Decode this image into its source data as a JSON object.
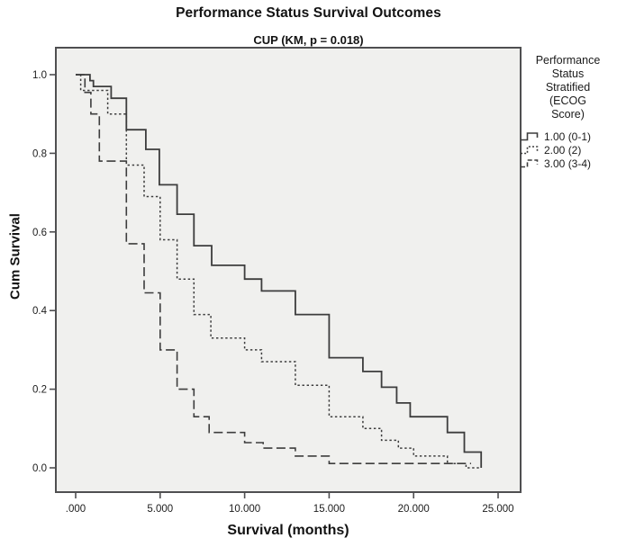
{
  "title": "Performance Status Survival Outcomes",
  "subtitle": "CUP (KM, p = 0.018)",
  "legend": {
    "title_lines": [
      "Performance",
      "Status",
      "Stratified",
      "(ECOG",
      "Score)"
    ],
    "entries": [
      {
        "label": "1.00 (0-1)",
        "style": "solid"
      },
      {
        "label": "2.00 (2)",
        "style": "dotted"
      },
      {
        "label": "3.00 (3-4)",
        "style": "dashed"
      }
    ]
  },
  "colors": {
    "curve": "#3d3d3d",
    "frame": "#4f4f51",
    "plot_bg": "#f0f0ee",
    "tick_text": "#1c1c1c"
  },
  "chart_data": {
    "type": "line",
    "subtype": "kaplan-meier-step",
    "title": "Performance Status Survival Outcomes",
    "subtitle": "CUP (KM, p = 0.018)",
    "p_value": 0.018,
    "xlabel": "Survival (months)",
    "ylabel": "Cum Survival",
    "xlim": [
      0,
      25
    ],
    "ylim": [
      0,
      1
    ],
    "grid": false,
    "legend_position": "right",
    "x_ticks": [
      {
        "value": 0,
        "label": ".000"
      },
      {
        "value": 5,
        "label": "5.000"
      },
      {
        "value": 10,
        "label": "10.000"
      },
      {
        "value": 15,
        "label": "15.000"
      },
      {
        "value": 20,
        "label": "20.000"
      },
      {
        "value": 25,
        "label": "25.000"
      }
    ],
    "y_ticks": [
      {
        "value": 0.0,
        "label": "0.0"
      },
      {
        "value": 0.2,
        "label": "0.2"
      },
      {
        "value": 0.4,
        "label": "0.4"
      },
      {
        "value": 0.6,
        "label": "0.6"
      },
      {
        "value": 0.8,
        "label": "0.8"
      },
      {
        "value": 1.0,
        "label": "1.0"
      }
    ],
    "series": [
      {
        "name": "1.00 (0-1)",
        "ecog": "0-1",
        "line": "solid",
        "end_time": 24.0,
        "points": [
          [
            0,
            1.0
          ],
          [
            0.85,
            0.985
          ],
          [
            1.05,
            0.97
          ],
          [
            2.1,
            0.94
          ],
          [
            3.0,
            0.86
          ],
          [
            4.15,
            0.81
          ],
          [
            4.95,
            0.72
          ],
          [
            6.0,
            0.645
          ],
          [
            7.0,
            0.565
          ],
          [
            8.05,
            0.515
          ],
          [
            10.0,
            0.48
          ],
          [
            11.0,
            0.45
          ],
          [
            13.0,
            0.39
          ],
          [
            15.0,
            0.28
          ],
          [
            17.0,
            0.245
          ],
          [
            18.1,
            0.205
          ],
          [
            19.0,
            0.165
          ],
          [
            19.8,
            0.13
          ],
          [
            22.0,
            0.09
          ],
          [
            23.0,
            0.04
          ],
          [
            24.0,
            0.0
          ]
        ]
      },
      {
        "name": "2.00 (2)",
        "ecog": "2",
        "line": "dotted",
        "end_time": 24.0,
        "points": [
          [
            0,
            1.0
          ],
          [
            0.3,
            0.96
          ],
          [
            1.9,
            0.9
          ],
          [
            3.0,
            0.77
          ],
          [
            4.05,
            0.69
          ],
          [
            5.0,
            0.58
          ],
          [
            6.0,
            0.48
          ],
          [
            7.0,
            0.39
          ],
          [
            8.0,
            0.33
          ],
          [
            10.0,
            0.3
          ],
          [
            11.0,
            0.27
          ],
          [
            13.0,
            0.21
          ],
          [
            15.0,
            0.13
          ],
          [
            17.0,
            0.1
          ],
          [
            18.1,
            0.07
          ],
          [
            19.1,
            0.05
          ],
          [
            20.0,
            0.03
          ],
          [
            22.0,
            0.011
          ],
          [
            23.1,
            0.0
          ]
        ]
      },
      {
        "name": "3.00 (3-4)",
        "ecog": "3-4",
        "line": "dashed",
        "end_time": 23.4,
        "points": [
          [
            0,
            1.0
          ],
          [
            0.55,
            0.955
          ],
          [
            0.9,
            0.9
          ],
          [
            1.4,
            0.78
          ],
          [
            3.0,
            0.57
          ],
          [
            4.05,
            0.445
          ],
          [
            5.0,
            0.3
          ],
          [
            6.0,
            0.2
          ],
          [
            7.0,
            0.13
          ],
          [
            7.9,
            0.09
          ],
          [
            10.0,
            0.064
          ],
          [
            11.1,
            0.05
          ],
          [
            13.0,
            0.03
          ],
          [
            15.0,
            0.011
          ]
        ]
      }
    ]
  }
}
